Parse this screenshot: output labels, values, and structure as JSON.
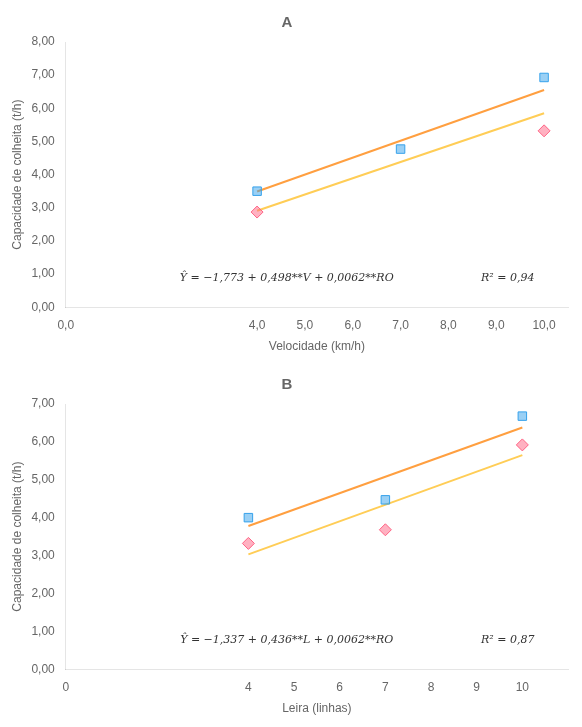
{
  "chart_data": [
    {
      "type": "scatter",
      "title": "A",
      "xlabel": "Velocidade (km/h)",
      "ylabel": "Capacidade de colheita (t/h)",
      "xlim": [
        0.0,
        10.5
      ],
      "ylim": [
        0.0,
        8.0
      ],
      "xticks": [
        {
          "value": 0.0,
          "label": "0,0"
        },
        {
          "value": 4.0,
          "label": "4,0"
        },
        {
          "value": 5.0,
          "label": "5,0"
        },
        {
          "value": 6.0,
          "label": "6,0"
        },
        {
          "value": 7.0,
          "label": "7,0"
        },
        {
          "value": 8.0,
          "label": "8,0"
        },
        {
          "value": 9.0,
          "label": "9,0"
        },
        {
          "value": 10.0,
          "label": "10,0"
        }
      ],
      "yticks": [
        {
          "value": 0.0,
          "label": "0,00"
        },
        {
          "value": 1.0,
          "label": "1,00"
        },
        {
          "value": 2.0,
          "label": "2,00"
        },
        {
          "value": 3.0,
          "label": "3,00"
        },
        {
          "value": 4.0,
          "label": "4,00"
        },
        {
          "value": 5.0,
          "label": "5,00"
        },
        {
          "value": 6.0,
          "label": "6,00"
        },
        {
          "value": 7.0,
          "label": "7,00"
        },
        {
          "value": 8.0,
          "label": "8,00"
        }
      ],
      "grid": false,
      "series": [
        {
          "type": "scatter",
          "marker": "square",
          "x": [
            4.0,
            7.0,
            10.0
          ],
          "values": [
            3.5,
            4.77,
            6.93
          ]
        },
        {
          "type": "scatter",
          "marker": "diamond",
          "x": [
            4.0,
            10.0
          ],
          "values": [
            2.87,
            5.32
          ]
        },
        {
          "type": "line",
          "line_style": "solid",
          "x": [
            4.0,
            10.0
          ],
          "values": [
            3.49,
            6.55
          ]
        },
        {
          "type": "line",
          "line_style": "solid",
          "x": [
            4.0,
            10.0
          ],
          "values": [
            2.91,
            5.85
          ]
        }
      ],
      "annotations": [
        "Ŷ = −1,773 + 0,498**V + 0,0062**RO",
        "R² = 0,94"
      ]
    },
    {
      "type": "scatter",
      "title": "B",
      "xlabel": "Leira (linhas)",
      "ylabel": "Capacidade de colheita (t/h)",
      "xlim": [
        0.0,
        11.0
      ],
      "ylim": [
        0.0,
        7.0
      ],
      "xticks": [
        0,
        4,
        5,
        6,
        7,
        8,
        9,
        10
      ],
      "yticks": [
        {
          "value": 0.0,
          "label": "0,00"
        },
        {
          "value": 1.0,
          "label": "1,00"
        },
        {
          "value": 2.0,
          "label": "2,00"
        },
        {
          "value": 3.0,
          "label": "3,00"
        },
        {
          "value": 4.0,
          "label": "4,00"
        },
        {
          "value": 5.0,
          "label": "5,00"
        },
        {
          "value": 6.0,
          "label": "6,00"
        },
        {
          "value": 7.0,
          "label": "7,00"
        }
      ],
      "grid": false,
      "series": [
        {
          "type": "scatter",
          "marker": "square",
          "x": [
            4.0,
            7.0,
            10.0
          ],
          "values": [
            4.0,
            4.47,
            6.68
          ]
        },
        {
          "type": "scatter",
          "marker": "diamond",
          "x": [
            4.0,
            7.0,
            10.0
          ],
          "values": [
            3.32,
            3.68,
            5.92
          ]
        },
        {
          "type": "line",
          "line_style": "solid",
          "x": [
            4.0,
            10.0
          ],
          "values": [
            3.78,
            6.38
          ]
        },
        {
          "type": "line",
          "line_style": "solid",
          "x": [
            4.0,
            10.0
          ],
          "values": [
            3.03,
            5.65
          ]
        }
      ],
      "annotations": [
        "Ŷ = −1,337 + 0,436**L + 0,0062**RO",
        "R² = 0,87"
      ]
    }
  ]
}
